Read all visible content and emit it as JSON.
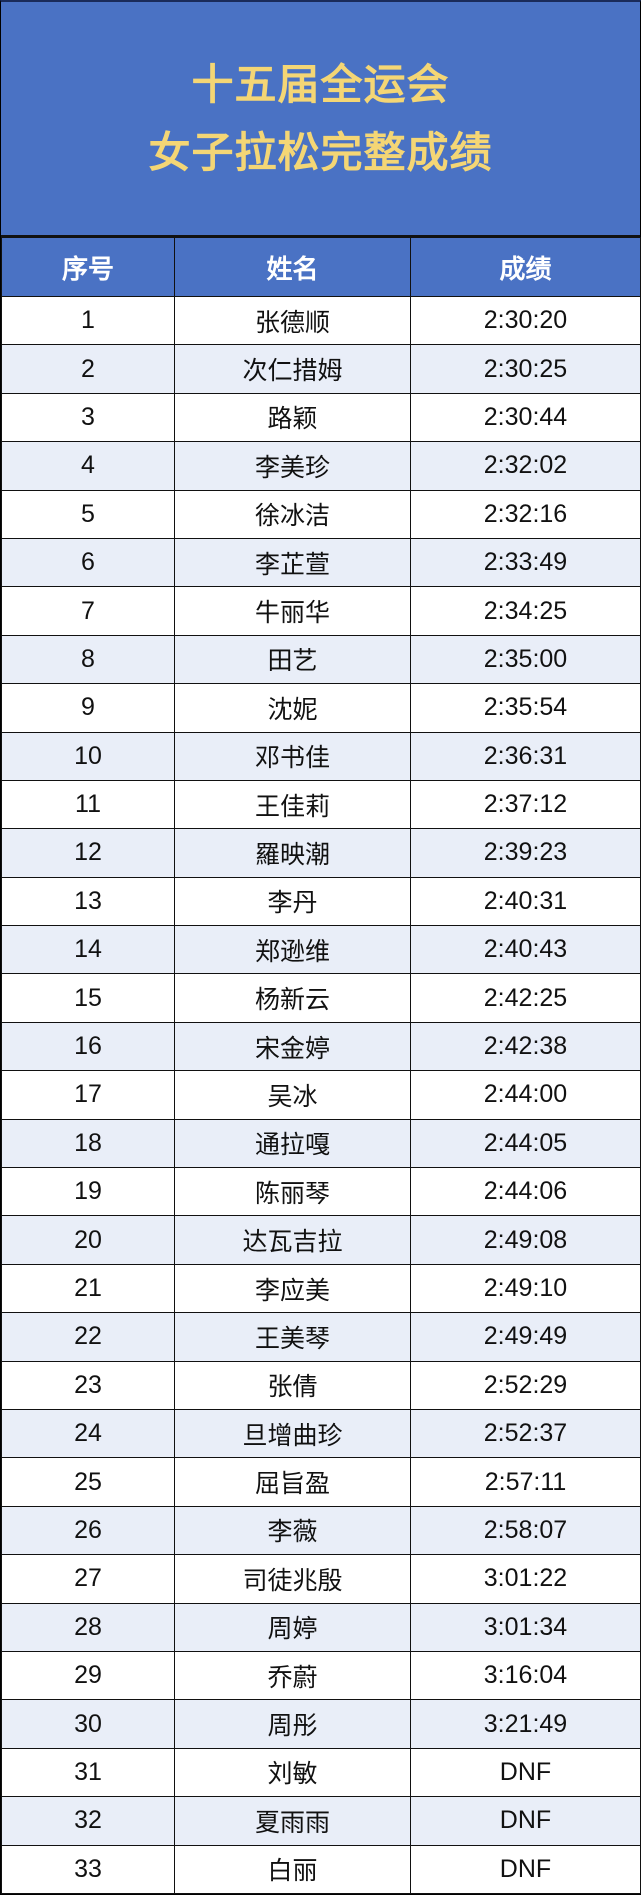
{
  "title": {
    "line1": "十五届全运会",
    "line2": "女子拉松完整成绩"
  },
  "colors": {
    "header_bg": "#4a72c4",
    "title_text": "#f4d675",
    "alt_row": "#e9eef8"
  },
  "columns": [
    "序号",
    "姓名",
    "成绩"
  ],
  "rows": [
    [
      "1",
      "张德顺",
      "2:30:20"
    ],
    [
      "2",
      "次仁措姆",
      "2:30:25"
    ],
    [
      "3",
      "路颖",
      "2:30:44"
    ],
    [
      "4",
      "李美珍",
      "2:32:02"
    ],
    [
      "5",
      "徐冰洁",
      "2:32:16"
    ],
    [
      "6",
      "李芷萱",
      "2:33:49"
    ],
    [
      "7",
      "牛丽华",
      "2:34:25"
    ],
    [
      "8",
      "田艺",
      "2:35:00"
    ],
    [
      "9",
      "沈妮",
      "2:35:54"
    ],
    [
      "10",
      "邓书佳",
      "2:36:31"
    ],
    [
      "11",
      "王佳莉",
      "2:37:12"
    ],
    [
      "12",
      "羅映潮",
      "2:39:23"
    ],
    [
      "13",
      "李丹",
      "2:40:31"
    ],
    [
      "14",
      "郑逊维",
      "2:40:43"
    ],
    [
      "15",
      "杨新云",
      "2:42:25"
    ],
    [
      "16",
      "宋金婷",
      "2:42:38"
    ],
    [
      "17",
      "吴冰",
      "2:44:00"
    ],
    [
      "18",
      "通拉嘎",
      "2:44:05"
    ],
    [
      "19",
      "陈丽琴",
      "2:44:06"
    ],
    [
      "20",
      "达瓦吉拉",
      "2:49:08"
    ],
    [
      "21",
      "李应美",
      "2:49:10"
    ],
    [
      "22",
      "王美琴",
      "2:49:49"
    ],
    [
      "23",
      "张倩",
      "2:52:29"
    ],
    [
      "24",
      "旦增曲珍",
      "2:52:37"
    ],
    [
      "25",
      "屈旨盈",
      "2:57:11"
    ],
    [
      "26",
      "李薇",
      "2:58:07"
    ],
    [
      "27",
      "司徒兆殷",
      "3:01:22"
    ],
    [
      "28",
      "周婷",
      "3:01:34"
    ],
    [
      "29",
      "乔蔚",
      "3:16:04"
    ],
    [
      "30",
      "周彤",
      "3:21:49"
    ],
    [
      "31",
      "刘敏",
      "DNF"
    ],
    [
      "32",
      "夏雨雨",
      "DNF"
    ],
    [
      "33",
      "白丽",
      "DNF"
    ]
  ]
}
